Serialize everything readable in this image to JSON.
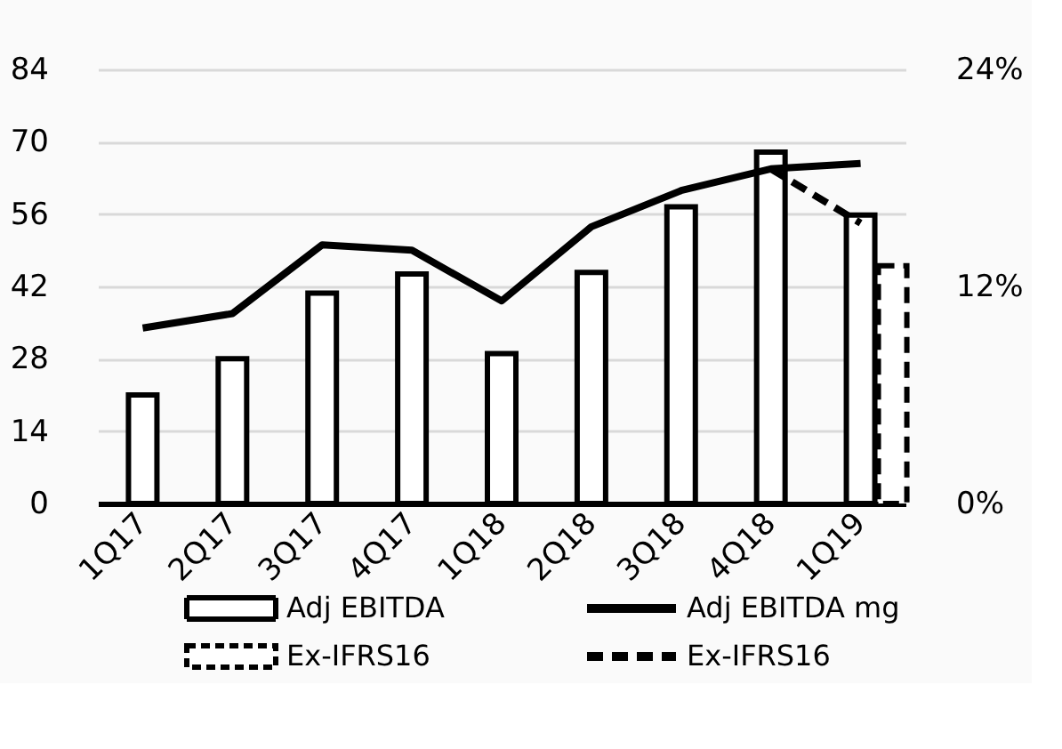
{
  "chart_data": {
    "type": "bar",
    "categories": [
      "1Q17",
      "2Q17",
      "3Q17",
      "4Q17",
      "1Q18",
      "2Q18",
      "3Q18",
      "4Q18",
      "1Q19"
    ],
    "series": [
      {
        "name": "Adj EBITDA",
        "color": "#000000",
        "values": [
          21,
          28,
          40.7,
          44.4,
          29,
          44.7,
          57.4,
          68,
          55.8
        ]
      },
      {
        "name": "Adj EBITDA mg",
        "type": "line",
        "axis": "y2",
        "color": "#000000",
        "values": [
          9.7,
          10.5,
          14.3,
          14.0,
          11.2,
          15.3,
          17.3,
          18.5,
          18.8
        ]
      },
      {
        "name": "Ex-IFRS16",
        "line_style": "dashed",
        "color": "#000000",
        "values": [
          null,
          null,
          null,
          null,
          null,
          null,
          null,
          null,
          46
        ]
      },
      {
        "name": "Ex-IFRS16",
        "type": "line",
        "axis": "y2",
        "line_style": "dashed",
        "color": "#000000",
        "values": [
          null,
          null,
          null,
          null,
          null,
          null,
          null,
          18.5,
          15.5
        ]
      }
    ],
    "ylim": [
      0,
      84
    ],
    "yticks": [
      0,
      14,
      28,
      42,
      56,
      70,
      84
    ],
    "y2lim": [
      0,
      24
    ],
    "y2ticks": [
      {
        "value": 0,
        "label": "0%"
      },
      {
        "value": 12,
        "label": "12%"
      },
      {
        "value": 24,
        "label": "24%"
      }
    ],
    "grid": "y",
    "legend": "bottom",
    "marker": "none",
    "line_style": "solid"
  }
}
